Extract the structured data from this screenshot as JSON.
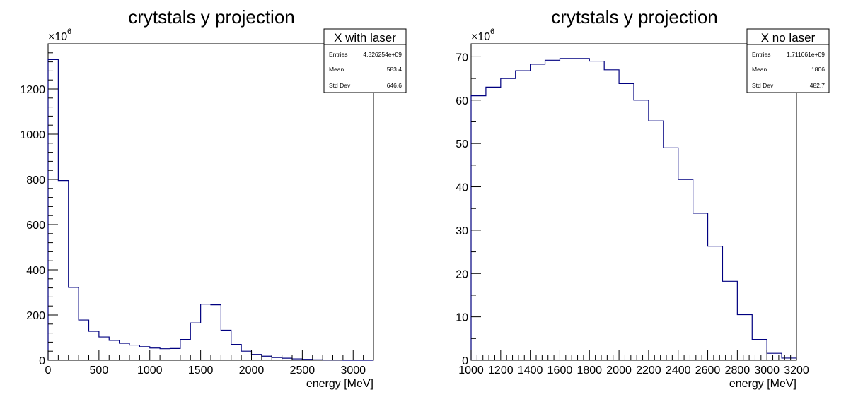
{
  "chart_data": [
    {
      "type": "bar",
      "title": "crytstals y projection",
      "xlabel": "energy [MeV]",
      "ylabel": "",
      "y_multiplier": "×10",
      "y_multiplier_exp": "6",
      "xlim": [
        0,
        3200
      ],
      "ylim": [
        0,
        1400
      ],
      "bin_edges": [
        0,
        100,
        200,
        300,
        400,
        500,
        600,
        700,
        800,
        900,
        1000,
        1100,
        1200,
        1300,
        1400,
        1500,
        1600,
        1700,
        1800,
        1900,
        2000,
        2100,
        2200,
        2300,
        2400,
        2500,
        2600,
        2700,
        2800,
        2900,
        3000,
        3100,
        3200
      ],
      "values": [
        1330,
        795,
        322,
        178,
        128,
        103,
        88,
        75,
        67,
        60,
        54,
        51,
        52,
        92,
        165,
        248,
        245,
        133,
        70,
        40,
        26,
        18,
        12,
        9,
        6,
        4,
        2,
        1,
        1,
        0,
        0,
        0
      ],
      "x_ticks": [
        0,
        500,
        1000,
        1500,
        2000,
        2500,
        3000
      ],
      "y_ticks": [
        0,
        200,
        400,
        600,
        800,
        1000,
        1200
      ],
      "line_color": "#000080",
      "stats": {
        "name": "X with laser",
        "entries_label": "Entries",
        "entries": "4.326254e+09",
        "mean_label": "Mean",
        "mean": "583.4",
        "std_label": "Std Dev",
        "std": "646.6"
      }
    },
    {
      "type": "bar",
      "title": "crytstals y projection",
      "xlabel": "energy [MeV]",
      "ylabel": "",
      "y_multiplier": "×10",
      "y_multiplier_exp": "6",
      "xlim": [
        1000,
        3200
      ],
      "ylim": [
        0,
        73
      ],
      "bin_edges": [
        1000,
        1100,
        1200,
        1300,
        1400,
        1500,
        1600,
        1700,
        1800,
        1900,
        2000,
        2100,
        2200,
        2300,
        2400,
        2500,
        2600,
        2700,
        2800,
        2900,
        3000,
        3100,
        3200
      ],
      "values": [
        61.0,
        63.0,
        65.0,
        66.8,
        68.3,
        69.2,
        69.6,
        69.6,
        69.0,
        67.0,
        63.8,
        60.0,
        55.2,
        49.0,
        41.7,
        33.9,
        26.3,
        18.2,
        10.5,
        4.8,
        1.6,
        0.5
      ],
      "x_ticks": [
        1000,
        1200,
        1400,
        1600,
        1800,
        2000,
        2200,
        2400,
        2600,
        2800,
        3000,
        3200
      ],
      "y_ticks": [
        0,
        10,
        20,
        30,
        40,
        50,
        60,
        70
      ],
      "line_color": "#000080",
      "stats": {
        "name": "X no laser",
        "entries_label": "Entries",
        "entries": "1.711661e+09",
        "mean_label": "Mean",
        "mean": "1806",
        "std_label": "Std Dev",
        "std": "482.7"
      }
    }
  ]
}
